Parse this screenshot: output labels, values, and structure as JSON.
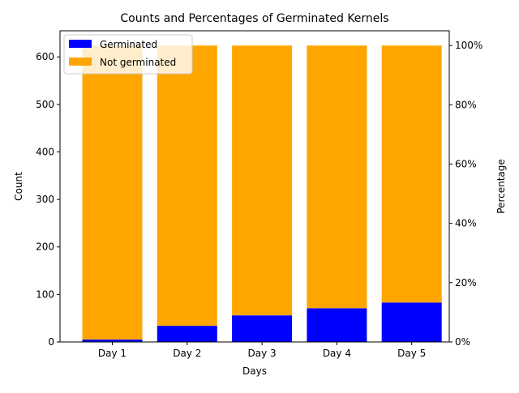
{
  "chart_data": {
    "type": "bar",
    "stacked": true,
    "title": "Counts and Percentages of Germinated Kernels",
    "xlabel": "Days",
    "ylabel": "Count",
    "ylabel_right": "Percentage",
    "categories": [
      "Day 1",
      "Day 2",
      "Day 3",
      "Day 4",
      "Day 5"
    ],
    "series": [
      {
        "name": "Germinated",
        "values": [
          5,
          34,
          56,
          71,
          83
        ],
        "color": "#0000ff"
      },
      {
        "name": "Not germinated",
        "values": [
          619,
          590,
          568,
          553,
          541
        ],
        "color": "#ffa500"
      }
    ],
    "ylim": [
      0,
      655
    ],
    "yticks": [
      0,
      100,
      200,
      300,
      400,
      500,
      600
    ],
    "ylim_right": [
      0,
      1.0497
    ],
    "yticks_right": [
      "0%",
      "20%",
      "40%",
      "60%",
      "80%",
      "100%"
    ],
    "yticks_right_values": [
      0,
      0.2,
      0.4,
      0.6,
      0.8,
      1.0
    ],
    "legend_position": "top-left",
    "grid": false
  }
}
